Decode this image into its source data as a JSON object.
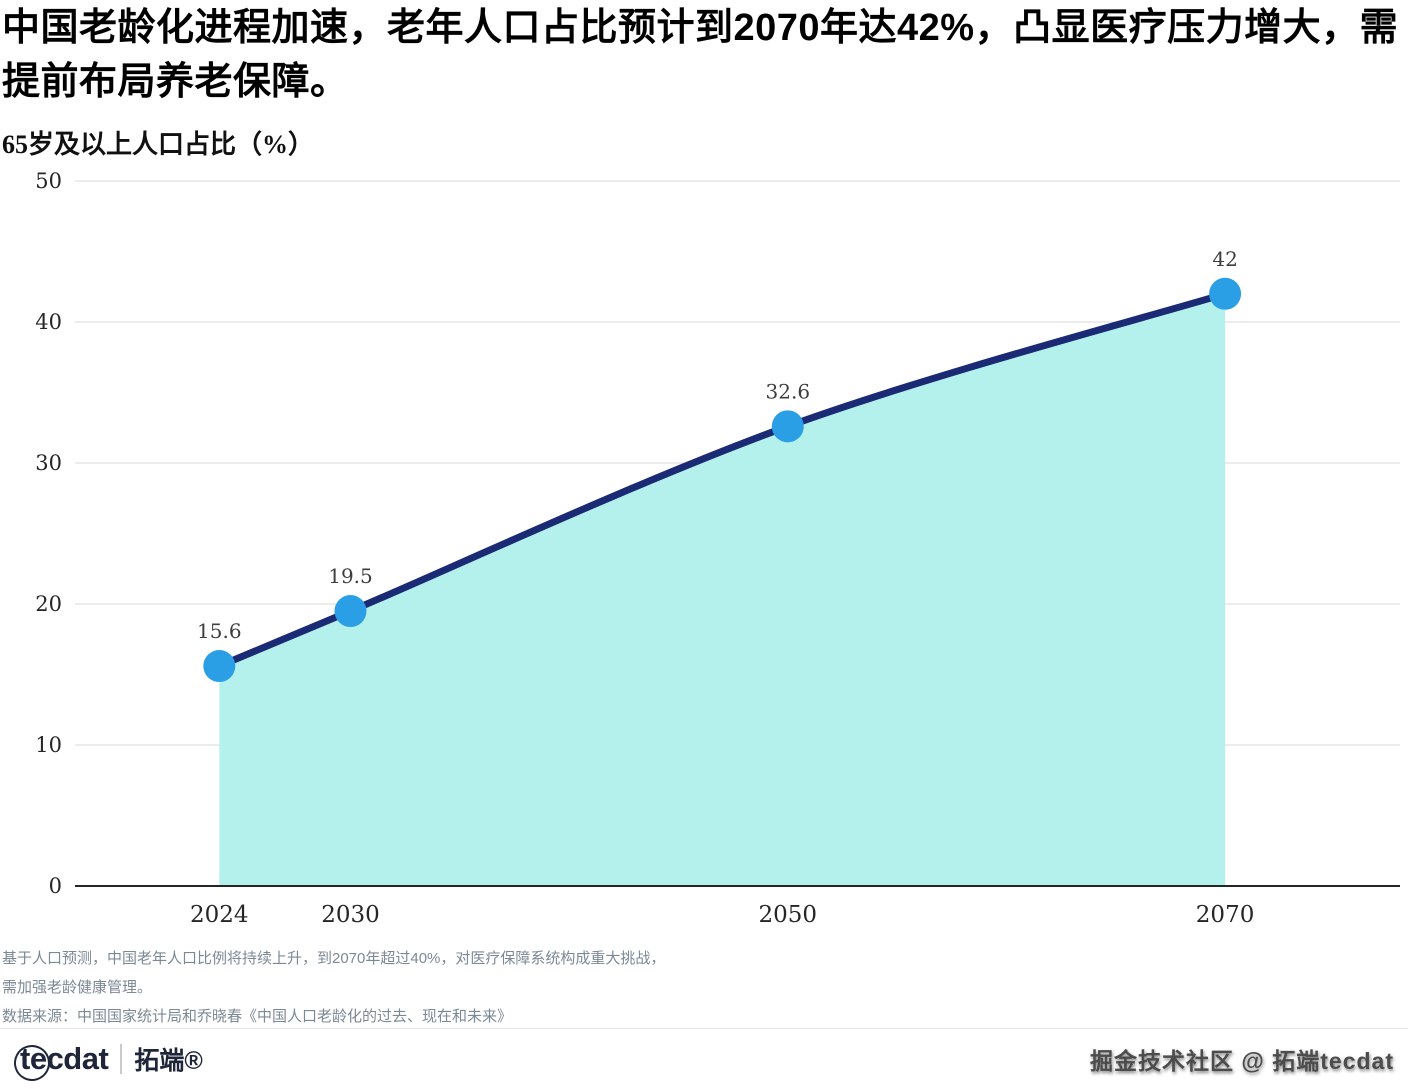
{
  "header": {
    "title": "中国老龄化进程加速，老年人口占比预计到2070年达42%，凸显医疗压力增大，需提前布局养老保障。",
    "subtitle": "65岁及以上人口占比（%）"
  },
  "chart_data": {
    "type": "area",
    "title": "65岁及以上人口占比（%）",
    "x": [
      2024,
      2030,
      2050,
      2070
    ],
    "categories": [
      "2024",
      "2030",
      "2050",
      "2070"
    ],
    "values": [
      15.6,
      19.5,
      32.6,
      42
    ],
    "point_labels": [
      "15.6",
      "19.5",
      "32.6",
      "42"
    ],
    "xlim": [
      2017.4,
      2078
    ],
    "ylim": [
      0,
      50
    ],
    "yticks": [
      0,
      10,
      20,
      30,
      40,
      50
    ],
    "grid": true,
    "legend": "none",
    "colors": {
      "line": "#1b2a75",
      "area": "#b5f1ec",
      "point": "#2b9fe6",
      "grid": "#d9d9d9",
      "axis": "#262626"
    }
  },
  "footer": {
    "note_line1": "基于人口预测，中国老年人口比例将持续上升，到2070年超过40%，对医疗保障系统构成重大挑战，",
    "note_line2": "需加强老龄健康管理。",
    "source": "数据来源：中国国家统计局和乔晓春《中国人口老龄化的过去、现在和未来》",
    "brand": "tecdat",
    "brand_cn": "拓端®",
    "watermark": "掘金技术社区 @ 拓端tecdat"
  }
}
